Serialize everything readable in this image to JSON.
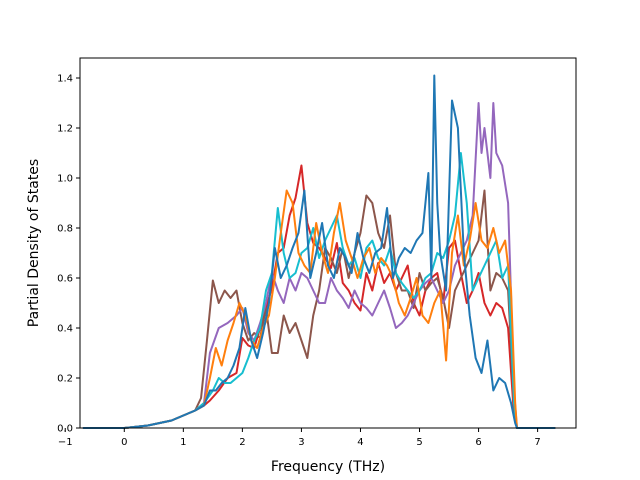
{
  "chart_data": {
    "type": "line",
    "xlabel": "Frequency (THz)",
    "ylabel": "Partial Density of States",
    "xlim": [
      -0.75,
      7.65
    ],
    "ylim": [
      0.0,
      1.48
    ],
    "xticks": [
      {
        "value": -1,
        "label": "−1"
      },
      {
        "value": 0,
        "label": "0"
      },
      {
        "value": 1,
        "label": "1"
      },
      {
        "value": 2,
        "label": "2"
      },
      {
        "value": 3,
        "label": "3"
      },
      {
        "value": 4,
        "label": "4"
      },
      {
        "value": 5,
        "label": "5"
      },
      {
        "value": 6,
        "label": "6"
      },
      {
        "value": 7,
        "label": "7"
      }
    ],
    "yticks": [
      {
        "value": 0.0,
        "label": "0.0"
      },
      {
        "value": 0.2,
        "label": "0.2"
      },
      {
        "value": 0.4,
        "label": "0.4"
      },
      {
        "value": 0.6,
        "label": "0.6"
      },
      {
        "value": 0.8,
        "label": "0.8"
      },
      {
        "value": 1.0,
        "label": "1.0"
      },
      {
        "value": 1.2,
        "label": "1.2"
      },
      {
        "value": 1.4,
        "label": "1.4"
      }
    ],
    "grid": false,
    "legend": "none",
    "series": [
      {
        "color": "#d62728",
        "x": [
          -0.7,
          0,
          0.4,
          0.8,
          1.0,
          1.2,
          1.35,
          1.45,
          1.6,
          1.75,
          1.9,
          2.0,
          2.1,
          2.2,
          2.3,
          2.4,
          2.5,
          2.6,
          2.7,
          2.8,
          2.9,
          3.0,
          3.1,
          3.2,
          3.3,
          3.4,
          3.5,
          3.6,
          3.7,
          3.8,
          3.9,
          4.0,
          4.1,
          4.2,
          4.3,
          4.4,
          4.5,
          4.6,
          4.7,
          4.8,
          4.9,
          5.0,
          5.1,
          5.2,
          5.3,
          5.4,
          5.5,
          5.6,
          5.7,
          5.8,
          5.9,
          6.0,
          6.1,
          6.2,
          6.3,
          6.4,
          6.5,
          6.6,
          6.65,
          7.3
        ],
        "y": [
          0,
          0,
          0.01,
          0.03,
          0.05,
          0.07,
          0.09,
          0.11,
          0.15,
          0.2,
          0.22,
          0.36,
          0.33,
          0.32,
          0.4,
          0.48,
          0.56,
          0.7,
          0.72,
          0.85,
          0.92,
          1.05,
          0.82,
          0.74,
          0.72,
          0.68,
          0.64,
          0.74,
          0.58,
          0.55,
          0.5,
          0.47,
          0.62,
          0.55,
          0.66,
          0.58,
          0.62,
          0.55,
          0.6,
          0.65,
          0.5,
          0.45,
          0.55,
          0.6,
          0.62,
          0.5,
          0.72,
          0.75,
          0.62,
          0.5,
          0.55,
          0.62,
          0.5,
          0.45,
          0.5,
          0.48,
          0.4,
          0.05,
          0.0,
          0.0
        ]
      },
      {
        "color": "#8c564b",
        "x": [
          -0.7,
          0,
          0.4,
          0.8,
          1.0,
          1.2,
          1.3,
          1.4,
          1.5,
          1.6,
          1.7,
          1.8,
          1.9,
          2.0,
          2.1,
          2.2,
          2.3,
          2.4,
          2.5,
          2.6,
          2.7,
          2.8,
          2.9,
          3.0,
          3.1,
          3.2,
          3.3,
          3.4,
          3.5,
          3.6,
          3.7,
          3.8,
          3.9,
          4.0,
          4.1,
          4.2,
          4.3,
          4.4,
          4.5,
          4.6,
          4.7,
          4.8,
          4.9,
          5.0,
          5.1,
          5.2,
          5.3,
          5.4,
          5.5,
          5.6,
          5.7,
          5.8,
          5.9,
          6.0,
          6.1,
          6.2,
          6.3,
          6.4,
          6.5,
          6.6,
          6.65,
          7.3
        ],
        "y": [
          0,
          0,
          0.01,
          0.03,
          0.05,
          0.07,
          0.12,
          0.35,
          0.59,
          0.5,
          0.55,
          0.52,
          0.55,
          0.42,
          0.35,
          0.38,
          0.36,
          0.48,
          0.3,
          0.3,
          0.45,
          0.38,
          0.42,
          0.35,
          0.28,
          0.45,
          0.55,
          0.72,
          0.68,
          0.62,
          0.72,
          0.6,
          0.7,
          0.78,
          0.93,
          0.9,
          0.78,
          0.72,
          0.85,
          0.62,
          0.55,
          0.55,
          0.48,
          0.62,
          0.55,
          0.58,
          0.6,
          0.52,
          0.4,
          0.55,
          0.6,
          0.65,
          0.7,
          0.75,
          0.95,
          0.55,
          0.62,
          0.6,
          0.55,
          0.1,
          0.0,
          0.0
        ]
      },
      {
        "color": "#9467bd",
        "x": [
          -0.7,
          0,
          0.4,
          0.8,
          1.0,
          1.2,
          1.35,
          1.45,
          1.6,
          1.75,
          1.9,
          2.0,
          2.1,
          2.2,
          2.3,
          2.4,
          2.5,
          2.6,
          2.7,
          2.8,
          2.9,
          3.0,
          3.1,
          3.2,
          3.3,
          3.4,
          3.5,
          3.6,
          3.7,
          3.8,
          3.9,
          4.0,
          4.1,
          4.2,
          4.3,
          4.4,
          4.5,
          4.6,
          4.7,
          4.8,
          4.9,
          5.0,
          5.1,
          5.2,
          5.3,
          5.4,
          5.5,
          5.6,
          5.7,
          5.8,
          5.9,
          6.0,
          6.05,
          6.1,
          6.2,
          6.25,
          6.3,
          6.4,
          6.5,
          6.6,
          6.65,
          7.3
        ],
        "y": [
          0,
          0,
          0.01,
          0.03,
          0.05,
          0.07,
          0.1,
          0.3,
          0.4,
          0.42,
          0.45,
          0.48,
          0.38,
          0.35,
          0.42,
          0.5,
          0.62,
          0.55,
          0.5,
          0.6,
          0.55,
          0.62,
          0.6,
          0.55,
          0.5,
          0.5,
          0.6,
          0.55,
          0.52,
          0.48,
          0.55,
          0.5,
          0.48,
          0.45,
          0.5,
          0.55,
          0.48,
          0.4,
          0.42,
          0.45,
          0.5,
          0.55,
          0.58,
          0.6,
          0.55,
          0.5,
          0.55,
          0.65,
          0.7,
          0.75,
          0.85,
          1.3,
          1.1,
          1.2,
          1.0,
          1.3,
          1.1,
          1.05,
          0.9,
          0.15,
          0.0,
          0.0
        ]
      },
      {
        "color": "#17becf",
        "x": [
          -0.7,
          0,
          0.4,
          0.8,
          1.0,
          1.2,
          1.35,
          1.5,
          1.6,
          1.7,
          1.8,
          1.9,
          2.0,
          2.1,
          2.2,
          2.3,
          2.4,
          2.5,
          2.6,
          2.7,
          2.8,
          2.9,
          3.0,
          3.1,
          3.2,
          3.3,
          3.4,
          3.5,
          3.6,
          3.7,
          3.8,
          3.9,
          4.0,
          4.1,
          4.2,
          4.3,
          4.4,
          4.5,
          4.6,
          4.7,
          4.8,
          4.9,
          5.0,
          5.1,
          5.2,
          5.3,
          5.4,
          5.5,
          5.6,
          5.7,
          5.8,
          5.9,
          6.0,
          6.1,
          6.2,
          6.3,
          6.4,
          6.5,
          6.6,
          6.65,
          7.3
        ],
        "y": [
          0,
          0,
          0.01,
          0.03,
          0.05,
          0.07,
          0.1,
          0.15,
          0.2,
          0.18,
          0.18,
          0.2,
          0.22,
          0.28,
          0.35,
          0.4,
          0.55,
          0.62,
          0.88,
          0.7,
          0.6,
          0.62,
          0.7,
          0.72,
          0.8,
          0.68,
          0.75,
          0.8,
          0.85,
          0.72,
          0.65,
          0.68,
          0.6,
          0.72,
          0.75,
          0.68,
          0.65,
          0.72,
          0.62,
          0.58,
          0.55,
          0.52,
          0.55,
          0.6,
          0.62,
          0.7,
          0.68,
          0.75,
          0.85,
          1.1,
          0.9,
          0.55,
          0.6,
          0.65,
          0.7,
          0.75,
          0.6,
          0.65,
          0.1,
          0.0,
          0.0
        ]
      },
      {
        "color": "#ff7f0e",
        "x": [
          -0.7,
          0,
          0.4,
          0.8,
          1.0,
          1.2,
          1.35,
          1.45,
          1.55,
          1.65,
          1.75,
          1.85,
          1.95,
          2.05,
          2.15,
          2.25,
          2.35,
          2.45,
          2.55,
          2.65,
          2.75,
          2.85,
          2.95,
          3.05,
          3.15,
          3.25,
          3.35,
          3.45,
          3.55,
          3.65,
          3.75,
          3.85,
          3.95,
          4.05,
          4.15,
          4.25,
          4.35,
          4.45,
          4.55,
          4.65,
          4.75,
          4.85,
          4.95,
          5.05,
          5.15,
          5.25,
          5.35,
          5.45,
          5.55,
          5.65,
          5.75,
          5.85,
          5.95,
          6.05,
          6.15,
          6.25,
          6.35,
          6.45,
          6.55,
          6.62,
          6.65,
          7.3
        ],
        "y": [
          0,
          0,
          0.01,
          0.03,
          0.05,
          0.07,
          0.09,
          0.2,
          0.32,
          0.25,
          0.35,
          0.42,
          0.5,
          0.45,
          0.35,
          0.32,
          0.4,
          0.45,
          0.6,
          0.78,
          0.95,
          0.9,
          0.7,
          0.65,
          0.62,
          0.82,
          0.7,
          0.62,
          0.78,
          0.9,
          0.75,
          0.68,
          0.6,
          0.68,
          0.72,
          0.62,
          0.68,
          0.65,
          0.6,
          0.5,
          0.45,
          0.52,
          0.6,
          0.45,
          0.42,
          0.5,
          0.55,
          0.27,
          0.7,
          0.85,
          0.65,
          0.75,
          0.9,
          0.75,
          0.72,
          0.8,
          0.7,
          0.75,
          0.55,
          0.1,
          0.0,
          0.0
        ]
      },
      {
        "color": "#1f77b4",
        "x": [
          -0.7,
          0,
          0.4,
          0.8,
          1.0,
          1.2,
          1.35,
          1.45,
          1.55,
          1.65,
          1.75,
          1.85,
          1.95,
          2.05,
          2.15,
          2.25,
          2.35,
          2.45,
          2.55,
          2.65,
          2.75,
          2.85,
          2.95,
          3.05,
          3.15,
          3.25,
          3.35,
          3.45,
          3.55,
          3.65,
          3.75,
          3.85,
          3.95,
          4.05,
          4.15,
          4.25,
          4.35,
          4.45,
          4.55,
          4.65,
          4.75,
          4.85,
          4.95,
          5.05,
          5.15,
          5.2,
          5.25,
          5.3,
          5.35,
          5.45,
          5.55,
          5.65,
          5.75,
          5.85,
          5.95,
          6.05,
          6.15,
          6.25,
          6.35,
          6.45,
          6.55,
          6.62,
          6.65,
          7.3
        ],
        "y": [
          0,
          0,
          0.01,
          0.03,
          0.05,
          0.07,
          0.09,
          0.15,
          0.15,
          0.18,
          0.2,
          0.25,
          0.32,
          0.48,
          0.35,
          0.28,
          0.38,
          0.5,
          0.72,
          0.6,
          0.65,
          0.72,
          0.78,
          0.95,
          0.6,
          0.7,
          0.82,
          0.65,
          0.6,
          0.72,
          0.68,
          0.62,
          0.78,
          0.68,
          0.62,
          0.7,
          0.72,
          0.88,
          0.6,
          0.68,
          0.72,
          0.7,
          0.75,
          0.78,
          1.02,
          0.6,
          1.41,
          0.9,
          0.7,
          0.55,
          1.31,
          1.2,
          0.7,
          0.45,
          0.28,
          0.22,
          0.35,
          0.15,
          0.2,
          0.18,
          0.1,
          0.02,
          0.0,
          0.0
        ]
      }
    ]
  }
}
